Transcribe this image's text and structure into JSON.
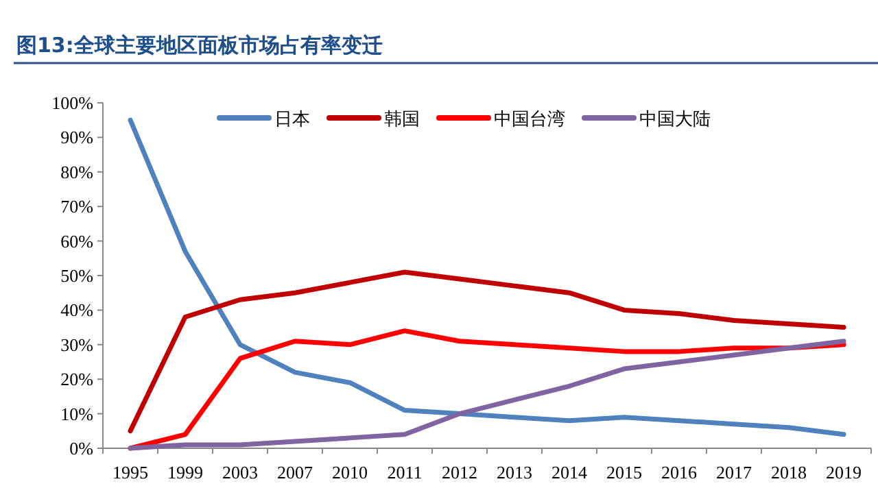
{
  "chart_data": {
    "type": "line",
    "title": "图13:全球主要地区面板市场占有率变迁",
    "categories": [
      "1995",
      "1999",
      "2003",
      "2007",
      "2010",
      "2011",
      "2012",
      "2013",
      "2014",
      "2015",
      "2016",
      "2017",
      "2018",
      "2019"
    ],
    "series": [
      {
        "name": "日本",
        "color": "#4f81bd",
        "values": [
          95,
          57,
          30,
          22,
          19,
          11,
          10,
          9,
          8,
          9,
          8,
          7,
          6,
          4
        ]
      },
      {
        "name": "韩国",
        "color": "#c00000",
        "values": [
          5,
          38,
          43,
          45,
          48,
          51,
          49,
          47,
          45,
          40,
          39,
          37,
          36,
          35
        ]
      },
      {
        "name": "中国台湾",
        "color": "#ff0000",
        "values": [
          0,
          4,
          26,
          31,
          30,
          34,
          31,
          30,
          29,
          28,
          28,
          29,
          29,
          30
        ]
      },
      {
        "name": "中国大陆",
        "color": "#8064a2",
        "values": [
          0,
          1,
          1,
          2,
          3,
          4,
          10,
          14,
          18,
          23,
          25,
          27,
          29,
          31
        ]
      }
    ],
    "ylim": [
      0,
      100
    ],
    "yticks": [
      {
        "value": 0,
        "label": "0%"
      },
      {
        "value": 10,
        "label": "10%"
      },
      {
        "value": 20,
        "label": "20%"
      },
      {
        "value": 30,
        "label": "30%"
      },
      {
        "value": 40,
        "label": "40%"
      },
      {
        "value": 50,
        "label": "50%"
      },
      {
        "value": 60,
        "label": "60%"
      },
      {
        "value": 70,
        "label": "70%"
      },
      {
        "value": 80,
        "label": "80%"
      },
      {
        "value": 90,
        "label": "90%"
      },
      {
        "value": 100,
        "label": "100%"
      }
    ],
    "legend": "top",
    "grid": false,
    "marker": "none",
    "line_style": "solid"
  }
}
